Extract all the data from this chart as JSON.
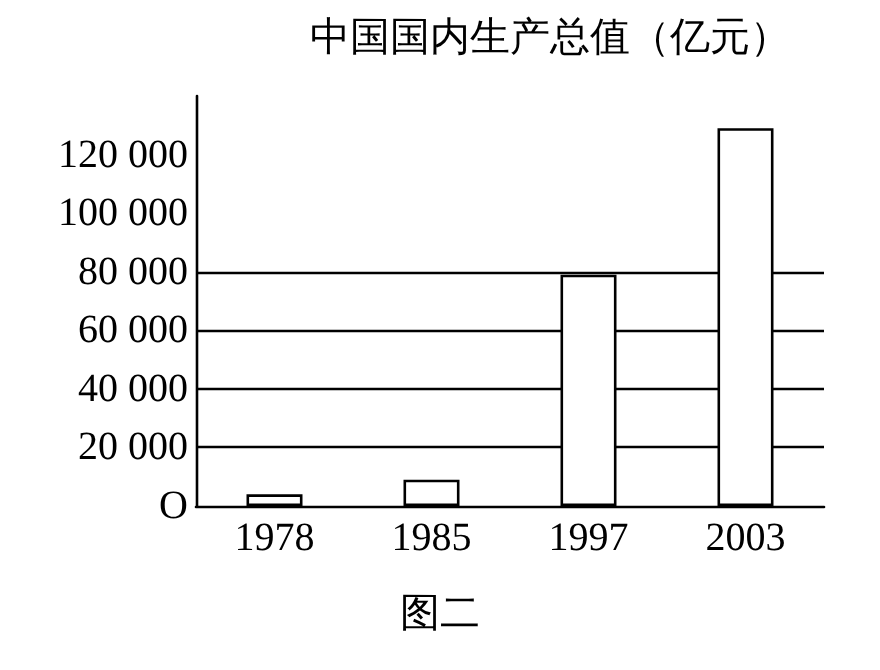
{
  "chart_data": {
    "type": "bar",
    "title": "中国国内生产总值（亿元）",
    "categories": [
      "1978",
      "1985",
      "1997",
      "2003"
    ],
    "values": [
      4000,
      9000,
      79000,
      129000
    ],
    "color": "#ffffff",
    "ylim": [
      0,
      140000
    ],
    "yticks": [
      {
        "value": 0,
        "label": "O"
      },
      {
        "value": 20000,
        "label": "20 000"
      },
      {
        "value": 40000,
        "label": "40 000"
      },
      {
        "value": 60000,
        "label": "60 000"
      },
      {
        "value": 80000,
        "label": "80 000"
      },
      {
        "value": 100000,
        "label": "100 000"
      },
      {
        "value": 120000,
        "label": "120 000"
      }
    ],
    "ref_lines": [
      {
        "axis": "y",
        "value": 20000,
        "color": "#000000"
      },
      {
        "axis": "y",
        "value": 40000,
        "color": "#000000"
      },
      {
        "axis": "y",
        "value": 60000,
        "color": "#000000"
      },
      {
        "axis": "y",
        "value": 80000,
        "color": "#000000"
      }
    ],
    "annotations": [
      "图二"
    ],
    "grid": false
  }
}
